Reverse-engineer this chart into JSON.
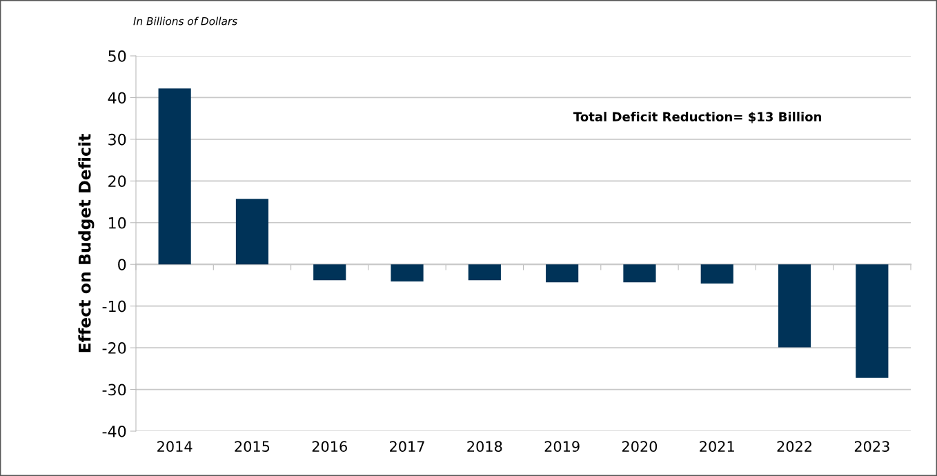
{
  "chart_data": {
    "type": "bar",
    "title": "In Billions of Dollars",
    "ylabel": "Effect on Budget Deficit",
    "categories": [
      "2014",
      "2015",
      "2016",
      "2017",
      "2018",
      "2019",
      "2020",
      "2021",
      "2022",
      "2023"
    ],
    "values": [
      42.2,
      15.7,
      -3.8,
      -4.1,
      -3.8,
      -4.3,
      -4.3,
      -4.6,
      -19.9,
      -27.2
    ],
    "color": "#003358",
    "ylim": [
      -40,
      50
    ],
    "yticks": [
      -40,
      -30,
      -20,
      -10,
      0,
      10,
      20,
      30,
      40,
      50
    ],
    "grid": "y",
    "annotations": [
      "Total Deficit Reduction= $13 Billion"
    ]
  }
}
